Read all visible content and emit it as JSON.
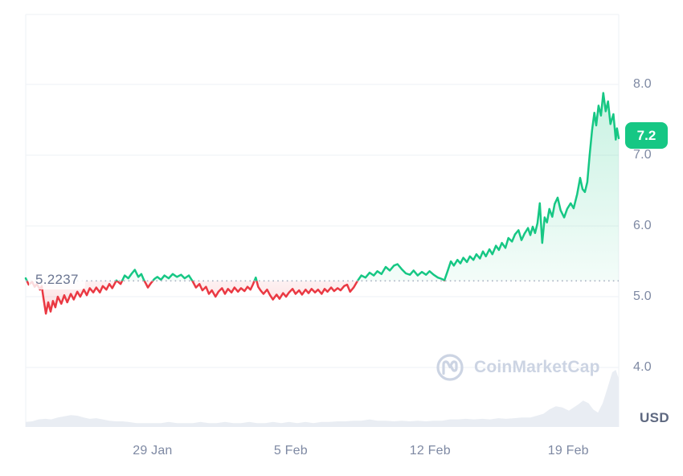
{
  "chart": {
    "baseline_label": "5.2237",
    "current_price_label": "7.2",
    "usd_label": "USD",
    "watermark_text": "CoinMarketCap"
  },
  "chart_data": {
    "type": "line",
    "currency": "USD",
    "grid": "horizontal",
    "legend": "none",
    "baseline_value": 5.2237,
    "last_price": 7.2,
    "ylim": [
      3.1,
      9.0
    ],
    "y_ticks": [
      {
        "value": 8.0,
        "label": "8.0"
      },
      {
        "value": 7.0,
        "label": "7.0"
      },
      {
        "value": 6.0,
        "label": "6.0"
      },
      {
        "value": 5.0,
        "label": "5.0"
      },
      {
        "value": 4.0,
        "label": "4.0"
      }
    ],
    "x_ticks": [
      {
        "t": 0.214,
        "label": "29 Jan"
      },
      {
        "t": 0.447,
        "label": "5 Feb"
      },
      {
        "t": 0.682,
        "label": "12 Feb"
      },
      {
        "t": 0.915,
        "label": "19 Feb"
      }
    ],
    "style": {
      "up": "#16c784",
      "down": "#ea3943",
      "volume": "#e9edf3",
      "grid": "#eef1f5",
      "baseline_dots": "#a8b1c2",
      "axis_text": "#7e89a3",
      "usd_text": "#5e6880",
      "baseline_text": "#6b7692",
      "badge_bg": "#16c784",
      "badge_text": "#ffffff",
      "watermark": "#ccd4e3"
    },
    "price_series": {
      "name": "Price (USD)",
      "points": [
        [
          0.0,
          5.26
        ],
        [
          0.005,
          5.17
        ],
        [
          0.011,
          5.21
        ],
        [
          0.015,
          5.14
        ],
        [
          0.019,
          5.18
        ],
        [
          0.024,
          5.1
        ],
        [
          0.027,
          5.15
        ],
        [
          0.03,
          4.98
        ],
        [
          0.034,
          4.76
        ],
        [
          0.038,
          4.92
        ],
        [
          0.042,
          4.79
        ],
        [
          0.046,
          4.94
        ],
        [
          0.05,
          4.85
        ],
        [
          0.054,
          5.0
        ],
        [
          0.06,
          4.9
        ],
        [
          0.065,
          5.02
        ],
        [
          0.07,
          4.92
        ],
        [
          0.076,
          5.04
        ],
        [
          0.081,
          4.96
        ],
        [
          0.087,
          5.07
        ],
        [
          0.092,
          5.0
        ],
        [
          0.098,
          5.1
        ],
        [
          0.103,
          5.02
        ],
        [
          0.108,
          5.12
        ],
        [
          0.114,
          5.06
        ],
        [
          0.119,
          5.13
        ],
        [
          0.125,
          5.06
        ],
        [
          0.13,
          5.15
        ],
        [
          0.136,
          5.1
        ],
        [
          0.141,
          5.18
        ],
        [
          0.146,
          5.12
        ],
        [
          0.153,
          5.23
        ],
        [
          0.16,
          5.18
        ],
        [
          0.167,
          5.3
        ],
        [
          0.173,
          5.26
        ],
        [
          0.179,
          5.33
        ],
        [
          0.184,
          5.38
        ],
        [
          0.19,
          5.28
        ],
        [
          0.195,
          5.32
        ],
        [
          0.199,
          5.24
        ],
        [
          0.203,
          5.18
        ],
        [
          0.206,
          5.13
        ],
        [
          0.211,
          5.19
        ],
        [
          0.217,
          5.25
        ],
        [
          0.222,
          5.28
        ],
        [
          0.228,
          5.24
        ],
        [
          0.234,
          5.3
        ],
        [
          0.241,
          5.26
        ],
        [
          0.248,
          5.32
        ],
        [
          0.255,
          5.28
        ],
        [
          0.262,
          5.31
        ],
        [
          0.268,
          5.26
        ],
        [
          0.275,
          5.3
        ],
        [
          0.282,
          5.21
        ],
        [
          0.287,
          5.13
        ],
        [
          0.293,
          5.18
        ],
        [
          0.298,
          5.09
        ],
        [
          0.304,
          5.14
        ],
        [
          0.309,
          5.04
        ],
        [
          0.314,
          5.09
        ],
        [
          0.32,
          5.0
        ],
        [
          0.325,
          5.07
        ],
        [
          0.331,
          5.12
        ],
        [
          0.336,
          5.04
        ],
        [
          0.341,
          5.11
        ],
        [
          0.347,
          5.06
        ],
        [
          0.352,
          5.13
        ],
        [
          0.358,
          5.07
        ],
        [
          0.363,
          5.12
        ],
        [
          0.369,
          5.08
        ],
        [
          0.374,
          5.14
        ],
        [
          0.379,
          5.1
        ],
        [
          0.383,
          5.17
        ],
        [
          0.388,
          5.27
        ],
        [
          0.392,
          5.14
        ],
        [
          0.396,
          5.09
        ],
        [
          0.401,
          5.04
        ],
        [
          0.407,
          5.1
        ],
        [
          0.412,
          5.02
        ],
        [
          0.417,
          4.96
        ],
        [
          0.423,
          5.03
        ],
        [
          0.428,
          4.97
        ],
        [
          0.434,
          5.05
        ],
        [
          0.439,
          5.0
        ],
        [
          0.444,
          5.06
        ],
        [
          0.45,
          5.11
        ],
        [
          0.455,
          5.04
        ],
        [
          0.461,
          5.09
        ],
        [
          0.466,
          5.03
        ],
        [
          0.472,
          5.1
        ],
        [
          0.477,
          5.05
        ],
        [
          0.482,
          5.11
        ],
        [
          0.488,
          5.06
        ],
        [
          0.493,
          5.1
        ],
        [
          0.499,
          5.04
        ],
        [
          0.504,
          5.11
        ],
        [
          0.509,
          5.07
        ],
        [
          0.515,
          5.13
        ],
        [
          0.52,
          5.08
        ],
        [
          0.526,
          5.12
        ],
        [
          0.531,
          5.09
        ],
        [
          0.537,
          5.15
        ],
        [
          0.542,
          5.17
        ],
        [
          0.547,
          5.07
        ],
        [
          0.553,
          5.13
        ],
        [
          0.56,
          5.23
        ],
        [
          0.566,
          5.3
        ],
        [
          0.573,
          5.27
        ],
        [
          0.58,
          5.34
        ],
        [
          0.587,
          5.3
        ],
        [
          0.593,
          5.36
        ],
        [
          0.6,
          5.32
        ],
        [
          0.607,
          5.42
        ],
        [
          0.614,
          5.37
        ],
        [
          0.621,
          5.44
        ],
        [
          0.627,
          5.46
        ],
        [
          0.634,
          5.39
        ],
        [
          0.641,
          5.33
        ],
        [
          0.648,
          5.31
        ],
        [
          0.654,
          5.37
        ],
        [
          0.661,
          5.3
        ],
        [
          0.668,
          5.35
        ],
        [
          0.675,
          5.31
        ],
        [
          0.681,
          5.36
        ],
        [
          0.688,
          5.31
        ],
        [
          0.695,
          5.27
        ],
        [
          0.702,
          5.25
        ],
        [
          0.706,
          5.23
        ],
        [
          0.711,
          5.35
        ],
        [
          0.717,
          5.5
        ],
        [
          0.722,
          5.44
        ],
        [
          0.728,
          5.52
        ],
        [
          0.733,
          5.47
        ],
        [
          0.738,
          5.55
        ],
        [
          0.744,
          5.49
        ],
        [
          0.749,
          5.57
        ],
        [
          0.755,
          5.52
        ],
        [
          0.76,
          5.6
        ],
        [
          0.766,
          5.54
        ],
        [
          0.771,
          5.64
        ],
        [
          0.776,
          5.57
        ],
        [
          0.782,
          5.67
        ],
        [
          0.787,
          5.6
        ],
        [
          0.793,
          5.72
        ],
        [
          0.798,
          5.66
        ],
        [
          0.803,
          5.76
        ],
        [
          0.809,
          5.69
        ],
        [
          0.814,
          5.83
        ],
        [
          0.82,
          5.78
        ],
        [
          0.825,
          5.88
        ],
        [
          0.831,
          5.94
        ],
        [
          0.836,
          5.8
        ],
        [
          0.841,
          5.89
        ],
        [
          0.847,
          5.97
        ],
        [
          0.851,
          5.87
        ],
        [
          0.855,
          5.99
        ],
        [
          0.859,
          5.9
        ],
        [
          0.863,
          6.04
        ],
        [
          0.867,
          6.32
        ],
        [
          0.871,
          5.76
        ],
        [
          0.875,
          6.12
        ],
        [
          0.879,
          6.05
        ],
        [
          0.883,
          6.24
        ],
        [
          0.888,
          6.13
        ],
        [
          0.892,
          6.31
        ],
        [
          0.897,
          6.4
        ],
        [
          0.902,
          6.22
        ],
        [
          0.908,
          6.12
        ],
        [
          0.913,
          6.24
        ],
        [
          0.919,
          6.32
        ],
        [
          0.924,
          6.25
        ],
        [
          0.93,
          6.45
        ],
        [
          0.935,
          6.68
        ],
        [
          0.939,
          6.52
        ],
        [
          0.943,
          6.48
        ],
        [
          0.947,
          6.62
        ],
        [
          0.951,
          7.0
        ],
        [
          0.955,
          7.35
        ],
        [
          0.959,
          7.6
        ],
        [
          0.962,
          7.42
        ],
        [
          0.966,
          7.7
        ],
        [
          0.97,
          7.56
        ],
        [
          0.974,
          7.88
        ],
        [
          0.978,
          7.62
        ],
        [
          0.982,
          7.76
        ],
        [
          0.986,
          7.44
        ],
        [
          0.991,
          7.58
        ],
        [
          0.995,
          7.22
        ],
        [
          0.997,
          7.38
        ],
        [
          1.0,
          7.24
        ]
      ]
    },
    "volume_series": {
      "name": "Volume (relative 0-1)",
      "points": [
        [
          0.0,
          0.08
        ],
        [
          0.011,
          0.09
        ],
        [
          0.022,
          0.12
        ],
        [
          0.033,
          0.13
        ],
        [
          0.043,
          0.12
        ],
        [
          0.054,
          0.15
        ],
        [
          0.065,
          0.17
        ],
        [
          0.076,
          0.19
        ],
        [
          0.087,
          0.18
        ],
        [
          0.098,
          0.15
        ],
        [
          0.108,
          0.13
        ],
        [
          0.119,
          0.14
        ],
        [
          0.13,
          0.12
        ],
        [
          0.141,
          0.1
        ],
        [
          0.152,
          0.09
        ],
        [
          0.163,
          0.09
        ],
        [
          0.173,
          0.08
        ],
        [
          0.187,
          0.06
        ],
        [
          0.201,
          0.06
        ],
        [
          0.214,
          0.06
        ],
        [
          0.228,
          0.06
        ],
        [
          0.241,
          0.08
        ],
        [
          0.255,
          0.06
        ],
        [
          0.268,
          0.06
        ],
        [
          0.282,
          0.06
        ],
        [
          0.295,
          0.08
        ],
        [
          0.309,
          0.06
        ],
        [
          0.322,
          0.06
        ],
        [
          0.336,
          0.08
        ],
        [
          0.35,
          0.06
        ],
        [
          0.363,
          0.06
        ],
        [
          0.377,
          0.08
        ],
        [
          0.39,
          0.06
        ],
        [
          0.404,
          0.06
        ],
        [
          0.417,
          0.08
        ],
        [
          0.431,
          0.06
        ],
        [
          0.444,
          0.08
        ],
        [
          0.458,
          0.06
        ],
        [
          0.472,
          0.08
        ],
        [
          0.485,
          0.06
        ],
        [
          0.499,
          0.08
        ],
        [
          0.512,
          0.08
        ],
        [
          0.526,
          0.09
        ],
        [
          0.539,
          0.09
        ],
        [
          0.553,
          0.1
        ],
        [
          0.566,
          0.1
        ],
        [
          0.58,
          0.12
        ],
        [
          0.593,
          0.1
        ],
        [
          0.607,
          0.1
        ],
        [
          0.621,
          0.09
        ],
        [
          0.634,
          0.1
        ],
        [
          0.648,
          0.09
        ],
        [
          0.661,
          0.1
        ],
        [
          0.675,
          0.09
        ],
        [
          0.688,
          0.1
        ],
        [
          0.702,
          0.1
        ],
        [
          0.715,
          0.12
        ],
        [
          0.729,
          0.12
        ],
        [
          0.742,
          0.13
        ],
        [
          0.756,
          0.12
        ],
        [
          0.77,
          0.13
        ],
        [
          0.783,
          0.12
        ],
        [
          0.797,
          0.14
        ],
        [
          0.81,
          0.13
        ],
        [
          0.824,
          0.14
        ],
        [
          0.837,
          0.15
        ],
        [
          0.851,
          0.15
        ],
        [
          0.862,
          0.18
        ],
        [
          0.873,
          0.21
        ],
        [
          0.883,
          0.28
        ],
        [
          0.894,
          0.33
        ],
        [
          0.905,
          0.31
        ],
        [
          0.916,
          0.26
        ],
        [
          0.924,
          0.31
        ],
        [
          0.932,
          0.36
        ],
        [
          0.94,
          0.42
        ],
        [
          0.949,
          0.38
        ],
        [
          0.957,
          0.28
        ],
        [
          0.965,
          0.23
        ],
        [
          0.973,
          0.38
        ],
        [
          0.981,
          0.62
        ],
        [
          0.989,
          0.87
        ],
        [
          0.995,
          0.91
        ],
        [
          1.0,
          0.77
        ]
      ]
    }
  }
}
